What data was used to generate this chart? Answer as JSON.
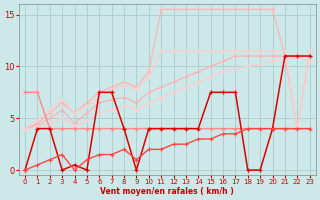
{
  "x": [
    0,
    1,
    2,
    3,
    4,
    5,
    6,
    7,
    8,
    9,
    10,
    11,
    12,
    13,
    14,
    15,
    16,
    17,
    18,
    19,
    20,
    21,
    22,
    23
  ],
  "series": [
    {
      "name": "fan_upper",
      "color": "#ffb3b3",
      "lw": 0.9,
      "marker": "+",
      "ms": 2.5,
      "mew": 0.7,
      "y": [
        4.0,
        4.5,
        5.5,
        6.5,
        5.5,
        6.5,
        7.5,
        8.0,
        8.5,
        8.0,
        9.5,
        15.5,
        15.5,
        15.5,
        15.5,
        15.5,
        15.5,
        15.5,
        15.5,
        15.5,
        15.5,
        11.0,
        4.0,
        11.5
      ]
    },
    {
      "name": "fan_upper2",
      "color": "#ffcccc",
      "lw": 0.9,
      "marker": "+",
      "ms": 2.5,
      "mew": 0.7,
      "y": [
        4.0,
        4.8,
        5.8,
        6.8,
        5.5,
        6.2,
        7.0,
        7.8,
        8.2,
        7.8,
        9.0,
        11.5,
        11.5,
        11.5,
        11.5,
        11.5,
        11.5,
        11.5,
        11.5,
        11.5,
        11.5,
        11.5,
        4.0,
        11.5
      ]
    },
    {
      "name": "fan_lower_upper",
      "color": "#ffb0b0",
      "lw": 0.9,
      "marker": "+",
      "ms": 2.5,
      "mew": 0.7,
      "y": [
        4.0,
        4.3,
        5.0,
        5.8,
        4.5,
        5.5,
        6.5,
        6.8,
        7.0,
        6.5,
        7.5,
        8.0,
        8.5,
        9.0,
        9.5,
        10.0,
        10.5,
        11.0,
        11.0,
        11.0,
        11.0,
        11.0,
        11.0,
        11.0
      ]
    },
    {
      "name": "fan_lower",
      "color": "#ffcccc",
      "lw": 0.9,
      "marker": "+",
      "ms": 2.5,
      "mew": 0.7,
      "y": [
        4.0,
        4.2,
        4.5,
        5.0,
        4.2,
        4.8,
        5.5,
        5.8,
        6.2,
        5.8,
        6.5,
        7.0,
        7.5,
        8.0,
        8.5,
        9.0,
        9.5,
        9.8,
        10.0,
        10.2,
        10.5,
        10.8,
        10.8,
        10.5
      ]
    },
    {
      "name": "medium_pink_markers",
      "color": "#ff8888",
      "lw": 1.0,
      "marker": "+",
      "ms": 3.5,
      "mew": 0.9,
      "y": [
        7.5,
        7.5,
        4.0,
        4.0,
        4.0,
        4.0,
        4.0,
        4.0,
        4.0,
        4.0,
        4.0,
        4.0,
        4.0,
        4.0,
        4.0,
        4.0,
        4.0,
        4.0,
        4.0,
        4.0,
        4.0,
        4.0,
        4.0,
        4.0
      ]
    },
    {
      "name": "dark_red_zigzag",
      "color": "#dd0000",
      "lw": 1.1,
      "marker": "+",
      "ms": 3.5,
      "mew": 0.9,
      "y": [
        0.0,
        4.0,
        4.0,
        0.0,
        0.5,
        0.0,
        7.5,
        7.5,
        4.0,
        0.0,
        4.0,
        4.0,
        4.0,
        4.0,
        4.0,
        7.5,
        7.5,
        7.5,
        0.0,
        0.0,
        4.0,
        11.0,
        11.0,
        11.0
      ]
    },
    {
      "name": "medium_flat_red",
      "color": "#ff4444",
      "lw": 1.0,
      "marker": "+",
      "ms": 3.0,
      "mew": 0.8,
      "y": [
        0.0,
        0.5,
        1.0,
        1.5,
        0.0,
        1.0,
        1.5,
        1.5,
        2.0,
        1.0,
        2.0,
        2.0,
        2.5,
        2.5,
        3.0,
        3.0,
        3.5,
        3.5,
        4.0,
        4.0,
        4.0,
        4.0,
        4.0,
        4.0
      ]
    }
  ],
  "xlabel": "Vent moyen/en rafales ( km/h )",
  "ylim": [
    -0.5,
    16
  ],
  "xlim": [
    -0.5,
    23.5
  ],
  "yticks": [
    0,
    5,
    10,
    15
  ],
  "xticks": [
    0,
    1,
    2,
    3,
    4,
    5,
    6,
    7,
    8,
    9,
    10,
    11,
    12,
    13,
    14,
    15,
    16,
    17,
    18,
    19,
    20,
    21,
    22,
    23
  ],
  "bg_color": "#cce8e8",
  "grid_color": "#aacccc",
  "tick_color": "#cc0000",
  "label_color": "#cc0000"
}
